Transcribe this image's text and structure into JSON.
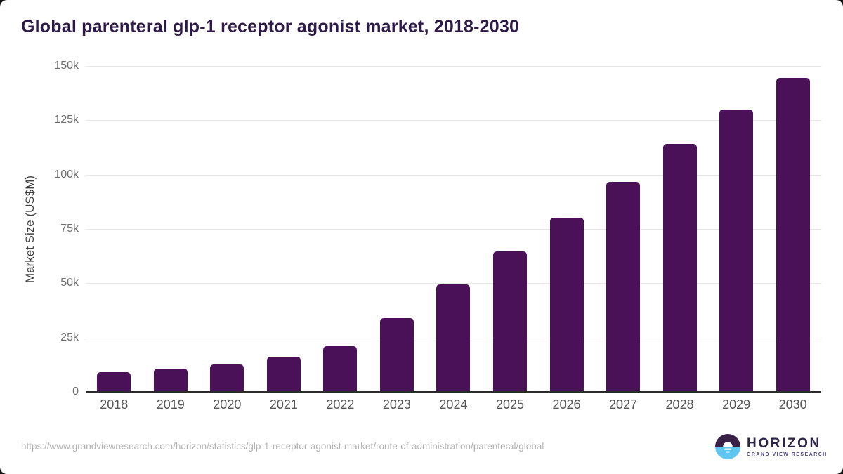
{
  "title": "Global parenteral glp-1 receptor agonist market, 2018-2030",
  "chart_data": {
    "type": "bar",
    "title": "Global parenteral glp-1 receptor agonist market, 2018-2030",
    "categories": [
      "2018",
      "2019",
      "2020",
      "2021",
      "2022",
      "2023",
      "2024",
      "2025",
      "2026",
      "2027",
      "2028",
      "2029",
      "2030"
    ],
    "values": [
      8900,
      10700,
      12600,
      16300,
      21100,
      33900,
      49500,
      64600,
      80100,
      96700,
      114200,
      130100,
      144400
    ],
    "xlabel": "",
    "ylabel": "Market Size (US$M)",
    "ylim": [
      0,
      150000
    ],
    "yticks": [
      0,
      25000,
      50000,
      75000,
      100000,
      125000,
      150000
    ],
    "ytick_labels": [
      "0",
      "25k",
      "50k",
      "75k",
      "100k",
      "125k",
      "150k"
    ],
    "grid": true,
    "legend": false,
    "bar_color": "#4a1158"
  },
  "footer": {
    "source_url": "https://www.grandviewresearch.com/horizon/statistics/glp-1-receptor-agonist-market/route-of-administration/parenteral/global",
    "logo": {
      "name": "HORIZON",
      "subtitle": "GRAND VIEW RESEARCH"
    }
  },
  "colors": {
    "bar": "#4a1158",
    "title_text": "#2e1a47",
    "gridline": "#e7e7e7",
    "axis_line": "#2b2b2b",
    "logo_circle_top": "#3a2147",
    "logo_circle_bottom": "#5fc6f1"
  }
}
